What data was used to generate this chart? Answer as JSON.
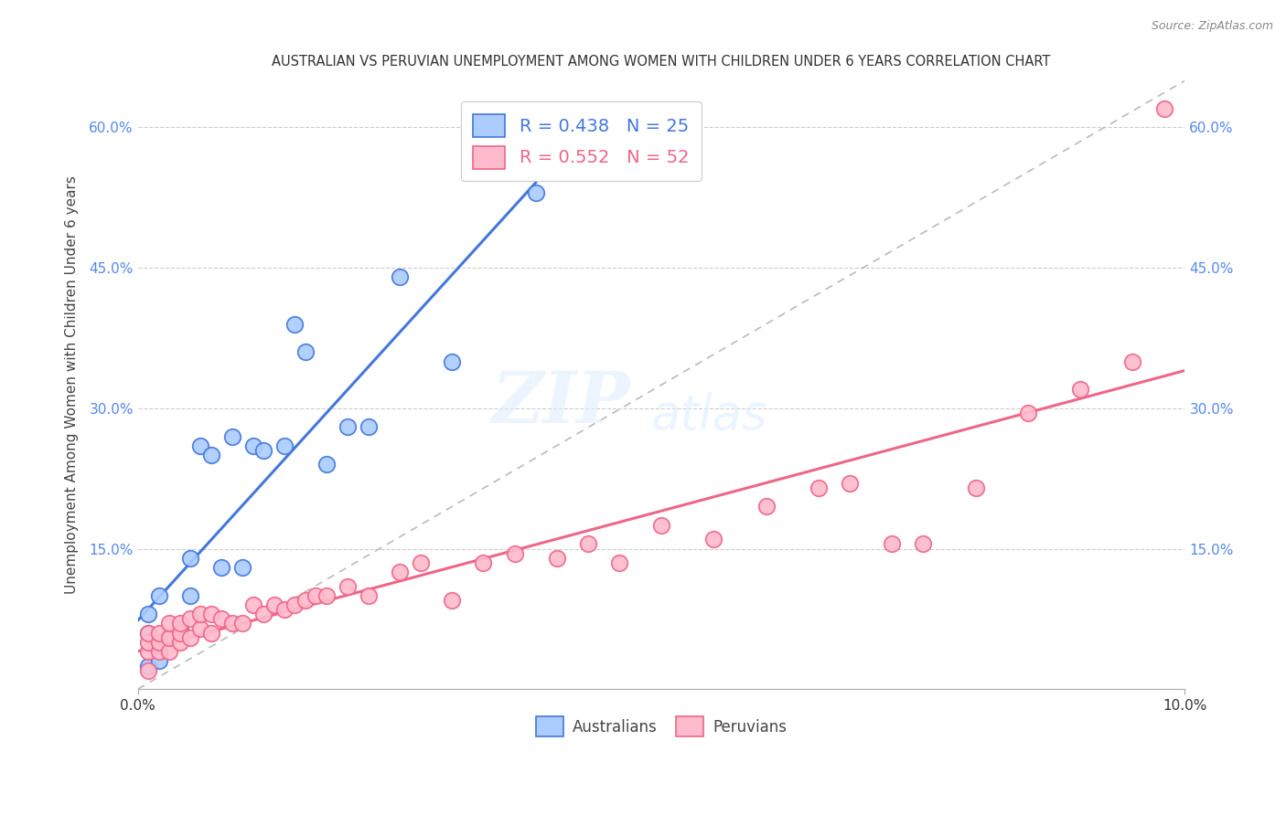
{
  "title": "AUSTRALIAN VS PERUVIAN UNEMPLOYMENT AMONG WOMEN WITH CHILDREN UNDER 6 YEARS CORRELATION CHART",
  "source": "Source: ZipAtlas.com",
  "ylabel": "Unemployment Among Women with Children Under 6 years",
  "xlim": [
    0.0,
    0.1
  ],
  "ylim": [
    0.0,
    0.65
  ],
  "yticks": [
    0.15,
    0.3,
    0.45,
    0.6
  ],
  "ytick_labels": [
    "15.0%",
    "30.0%",
    "45.0%",
    "60.0%"
  ],
  "xticks": [
    0.0,
    0.1
  ],
  "xtick_labels": [
    "0.0%",
    "10.0%"
  ],
  "australia_R": 0.438,
  "australia_N": 25,
  "peru_R": 0.552,
  "peru_N": 52,
  "australia_color": "#aaccff",
  "peru_color": "#ffbbcc",
  "australia_line_color": "#4477dd",
  "peru_line_color": "#ee6688",
  "diag_color": "#bbbbbb",
  "watermark_zip": "ZIP",
  "watermark_atlas": "atlas",
  "legend_aus_label": "R = 0.438   N = 25",
  "legend_per_label": "R = 0.552   N = 52",
  "aus_x": [
    0.001,
    0.001,
    0.001,
    0.002,
    0.002,
    0.003,
    0.004,
    0.005,
    0.005,
    0.006,
    0.007,
    0.008,
    0.009,
    0.01,
    0.011,
    0.012,
    0.014,
    0.015,
    0.016,
    0.018,
    0.02,
    0.022,
    0.025,
    0.03,
    0.038
  ],
  "aus_y": [
    0.025,
    0.06,
    0.08,
    0.03,
    0.1,
    0.055,
    0.065,
    0.1,
    0.14,
    0.26,
    0.25,
    0.13,
    0.27,
    0.13,
    0.26,
    0.255,
    0.26,
    0.39,
    0.36,
    0.24,
    0.28,
    0.28,
    0.44,
    0.35,
    0.53
  ],
  "per_x": [
    0.001,
    0.001,
    0.001,
    0.001,
    0.002,
    0.002,
    0.002,
    0.003,
    0.003,
    0.003,
    0.004,
    0.004,
    0.004,
    0.005,
    0.005,
    0.006,
    0.006,
    0.007,
    0.007,
    0.008,
    0.009,
    0.01,
    0.011,
    0.012,
    0.013,
    0.014,
    0.015,
    0.016,
    0.017,
    0.018,
    0.02,
    0.022,
    0.025,
    0.027,
    0.03,
    0.033,
    0.036,
    0.04,
    0.043,
    0.046,
    0.05,
    0.055,
    0.06,
    0.065,
    0.068,
    0.072,
    0.075,
    0.08,
    0.085,
    0.09,
    0.095,
    0.098
  ],
  "per_y": [
    0.02,
    0.04,
    0.05,
    0.06,
    0.04,
    0.05,
    0.06,
    0.04,
    0.055,
    0.07,
    0.05,
    0.06,
    0.07,
    0.055,
    0.075,
    0.065,
    0.08,
    0.06,
    0.08,
    0.075,
    0.07,
    0.07,
    0.09,
    0.08,
    0.09,
    0.085,
    0.09,
    0.095,
    0.1,
    0.1,
    0.11,
    0.1,
    0.125,
    0.135,
    0.095,
    0.135,
    0.145,
    0.14,
    0.155,
    0.135,
    0.175,
    0.16,
    0.195,
    0.215,
    0.22,
    0.155,
    0.155,
    0.215,
    0.295,
    0.32,
    0.35,
    0.62
  ]
}
